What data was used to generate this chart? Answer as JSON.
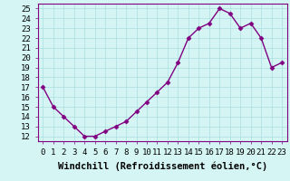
{
  "x": [
    0,
    1,
    2,
    3,
    4,
    5,
    6,
    7,
    8,
    9,
    10,
    11,
    12,
    13,
    14,
    15,
    16,
    17,
    18,
    19,
    20,
    21,
    22,
    23
  ],
  "y": [
    17,
    15,
    14,
    13,
    12,
    12,
    12.5,
    13,
    13.5,
    14.5,
    15.5,
    16.5,
    17.5,
    19.5,
    22,
    23,
    23.5,
    25,
    24.5,
    23,
    23.5,
    22,
    19,
    19.5
  ],
  "line_color": "#800080",
  "marker": "D",
  "marker_size": 2.5,
  "bg_color": "#d5f5f5",
  "grid_color": "#aadddd",
  "xlabel": "Windchill (Refroidissement éolien,°C)",
  "xlabel_fontsize": 7.5,
  "tick_fontsize": 6.5,
  "ylim": [
    11.5,
    25.5
  ],
  "yticks": [
    12,
    13,
    14,
    15,
    16,
    17,
    18,
    19,
    20,
    21,
    22,
    23,
    24,
    25
  ],
  "xtick_labels": [
    "0",
    "1",
    "2",
    "3",
    "4",
    "5",
    "6",
    "7",
    "8",
    "9",
    "10",
    "11",
    "12",
    "13",
    "14",
    "15",
    "16",
    "17",
    "18",
    "19",
    "20",
    "21",
    "22",
    "23"
  ],
  "spine_color": "#800080",
  "title_color": "#800080",
  "lw": 1.0
}
